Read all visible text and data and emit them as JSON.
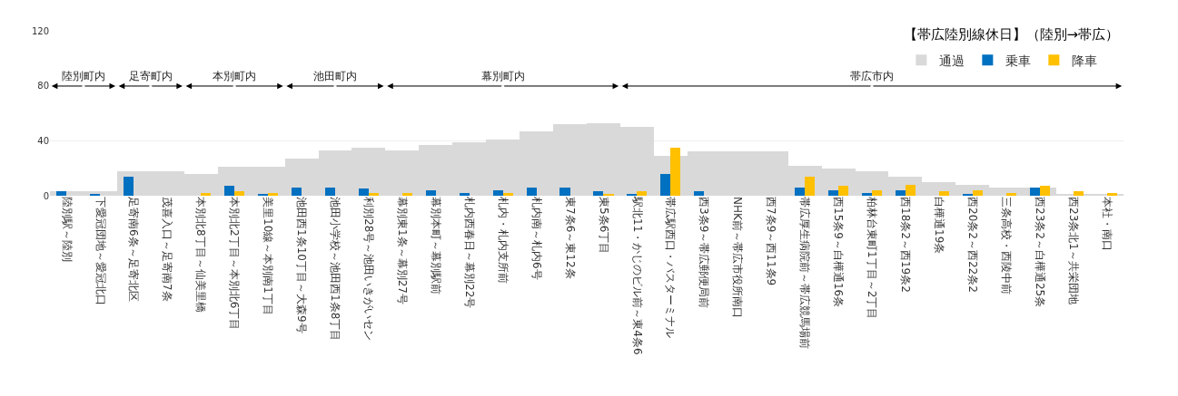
{
  "chart_data": {
    "type": "bar",
    "title": "【帯広陸別線休日】（陸別→帯広）",
    "categories": [
      "陸別駅～陸別",
      "下愛冠団地～愛冠北口",
      "足寄南6条～足寄北区",
      "茂喜入口～足寄南7条",
      "本別北8丁目～仙美里橋",
      "本別北2丁目～本別北6丁目",
      "美里10線～本別南1丁目",
      "池田西1条10丁目～大森9号",
      "池田小学校～池田西1条8丁目",
      "利別28号～池田いきがいセン",
      "幕別東1条～幕別27号",
      "幕別本町～幕別駅前",
      "札内西春日～幕別22号",
      "札内・札内支所前",
      "札内南～札内6号",
      "東7条6～東12条",
      "東5条6丁目",
      "駅北11・かじのビル前～東4条6",
      "帯広駅西口・バスターミナル",
      "西3条9～帯広郵便局前",
      "NHK前～帯広市役所南口",
      "西7条9～西11条9",
      "帯広厚生病院前～帯広競馬場前",
      "西15条9～白樺通16条",
      "柏林台東町1丁目～2丁目",
      "西18条2～西19条2",
      "白樺通19条",
      "西20条2～西22条2",
      "三条高校・西陵中前",
      "西23条2～白樺通25条",
      "西23条北1～共栄団地",
      "本社・南口"
    ],
    "series": [
      {
        "name": "通過",
        "color": "#d9d9d9",
        "values": [
          3,
          3,
          18,
          18,
          16,
          21,
          21,
          27,
          33,
          35,
          33,
          37,
          39,
          41,
          47,
          52,
          53,
          50,
          29,
          32,
          32,
          32,
          22,
          20,
          18,
          14,
          10,
          8,
          6,
          6,
          1,
          1
        ]
      },
      {
        "name": "乗車",
        "color": "#0070c0",
        "values": [
          3,
          1,
          14,
          0,
          0,
          7,
          1,
          6,
          6,
          5,
          0,
          4,
          2,
          4,
          6,
          6,
          3,
          1,
          16,
          3,
          0,
          0,
          6,
          4,
          2,
          4,
          0,
          1,
          0,
          6,
          0,
          0
        ]
      },
      {
        "name": "降車",
        "color": "#ffc000",
        "values": [
          0,
          0,
          0,
          0,
          2,
          3,
          2,
          0,
          0,
          2,
          2,
          0,
          0,
          2,
          0,
          0,
          1,
          3,
          35,
          0,
          0,
          0,
          14,
          7,
          4,
          8,
          3,
          4,
          2,
          7,
          3,
          2
        ]
      }
    ],
    "annotations": [
      "陸別町内",
      "足寄町内",
      "本別町内",
      "池田町内",
      "幕別町内",
      "帯広市内"
    ],
    "ylim": [
      0,
      120
    ],
    "yticks": [
      0,
      40,
      80,
      120
    ],
    "grid": "y",
    "legend": "top right"
  }
}
